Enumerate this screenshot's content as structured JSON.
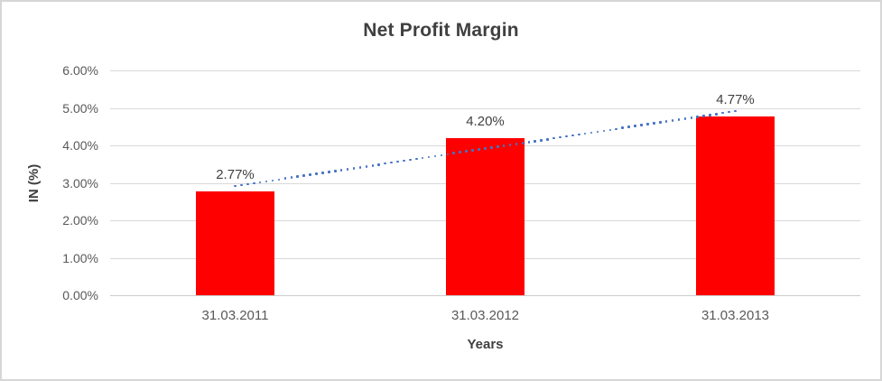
{
  "page": {
    "background_color": "#ffffff",
    "frame_border_color": "#d6d6d6"
  },
  "chart_data": {
    "type": "bar",
    "title": "Net Profit Margin",
    "categories": [
      "31.03.2011",
      "31.03.2012",
      "31.03.2013"
    ],
    "values": [
      2.77,
      4.2,
      4.77
    ],
    "data_labels": [
      "2.77%",
      "4.20%",
      "4.77%"
    ],
    "xlabel": "Years",
    "ylabel": "IN (%)",
    "ylim": [
      0,
      6
    ],
    "y_tick_labels": [
      "0.00%",
      "1.00%",
      "2.00%",
      "3.00%",
      "4.00%",
      "5.00%",
      "6.00%"
    ],
    "grid": true,
    "legend": "none",
    "bar_color": "#ff0000",
    "gridline_color": "#d9d9d9",
    "baseline_color": "#cccccc",
    "title_color": "#404040",
    "tick_label_color": "#595959",
    "axis_title_color": "#404040",
    "data_label_color": "#404040",
    "trendline": {
      "type": "linear",
      "style": "dotted",
      "color": "#4472c4"
    }
  }
}
